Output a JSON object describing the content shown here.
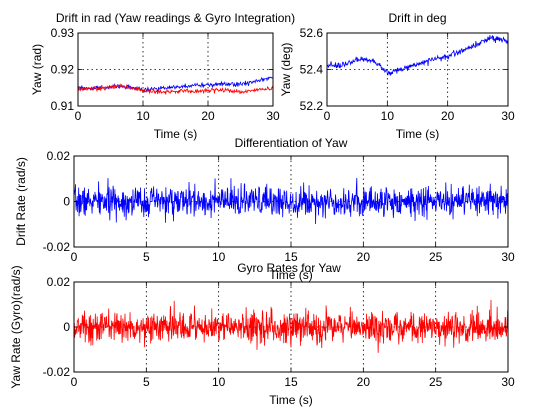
{
  "chart_data": [
    {
      "id": "ax1",
      "type": "line",
      "title": "Drift in rad (Yaw readings & Gyro Integration)",
      "xlabel": "Time (s)",
      "ylabel": "Yaw (rad)",
      "xlim": [
        0,
        30
      ],
      "ylim": [
        0.91,
        0.93
      ],
      "xticks": [
        0,
        10,
        20,
        30
      ],
      "yticks": [
        0.91,
        0.92,
        0.93
      ],
      "ytick_labels": [
        "0.91",
        "0.92",
        "0.93"
      ],
      "grid": true,
      "series": [
        {
          "color": "#0000ff",
          "noise": 0.0003,
          "x": [
            0,
            2,
            4,
            6,
            8,
            10,
            12,
            14,
            16,
            18,
            20,
            22,
            24,
            26,
            28,
            30
          ],
          "y": [
            0.915,
            0.9148,
            0.915,
            0.9153,
            0.9152,
            0.9145,
            0.9148,
            0.915,
            0.9152,
            0.9157,
            0.9158,
            0.916,
            0.9158,
            0.9163,
            0.917,
            0.9178
          ]
        },
        {
          "color": "#ff0000",
          "noise": 0.0003,
          "x": [
            0,
            2,
            4,
            6,
            8,
            10,
            12,
            14,
            16,
            18,
            20,
            22,
            24,
            26,
            28,
            30
          ],
          "y": [
            0.9148,
            0.9146,
            0.915,
            0.9156,
            0.915,
            0.9142,
            0.914,
            0.9138,
            0.9142,
            0.914,
            0.9142,
            0.9145,
            0.914,
            0.914,
            0.9145,
            0.9148
          ]
        }
      ]
    },
    {
      "id": "ax2",
      "type": "line",
      "title": "Drift in deg",
      "xlabel": "Time (s)",
      "ylabel": "Yaw (deg)",
      "xlim": [
        0,
        30
      ],
      "ylim": [
        52.2,
        52.6
      ],
      "xticks": [
        0,
        10,
        20,
        30
      ],
      "yticks": [
        52.2,
        52.4,
        52.6
      ],
      "ytick_labels": [
        "52.2",
        "52.4",
        "52.6"
      ],
      "grid": true,
      "series": [
        {
          "color": "#0000ff",
          "noise": 0.008,
          "x": [
            0,
            2,
            4,
            6,
            8,
            10,
            12,
            14,
            16,
            18,
            20,
            22,
            24,
            26,
            28,
            30
          ],
          "y": [
            52.43,
            52.42,
            52.44,
            52.46,
            52.44,
            52.38,
            52.4,
            52.42,
            52.44,
            52.46,
            52.47,
            52.5,
            52.52,
            52.56,
            52.57,
            52.56
          ]
        }
      ]
    },
    {
      "id": "ax3",
      "type": "line",
      "title": "Differentiation of Yaw",
      "xlabel": "Time (s)",
      "ylabel": "Drift Rate (rad/s)",
      "xlim": [
        0,
        30
      ],
      "ylim": [
        -0.02,
        0.02
      ],
      "xticks": [
        0,
        5,
        10,
        15,
        20,
        25,
        30
      ],
      "yticks": [
        -0.02,
        0,
        0.02
      ],
      "ytick_labels": [
        "-0.02",
        "0",
        "0.02"
      ],
      "grid": true,
      "series": [
        {
          "color": "#0000ff",
          "samples": 1200,
          "mean": 0.0,
          "std": 0.0033,
          "seed": 7
        }
      ]
    },
    {
      "id": "ax4",
      "type": "line",
      "title": "Gyro Rates for Yaw",
      "xlabel": "Time (s)",
      "ylabel": "Yaw Rate (Gyro)(rad/s)",
      "xlim": [
        0,
        30
      ],
      "ylim": [
        -0.02,
        0.02
      ],
      "xticks": [
        0,
        5,
        10,
        15,
        20,
        25,
        30
      ],
      "yticks": [
        -0.02,
        0,
        0.02
      ],
      "ytick_labels": [
        "-0.02",
        "0",
        "0.02"
      ],
      "grid": true,
      "series": [
        {
          "color": "#ff0000",
          "samples": 1200,
          "mean": 0.0,
          "std": 0.0035,
          "seed": 13
        }
      ]
    }
  ]
}
